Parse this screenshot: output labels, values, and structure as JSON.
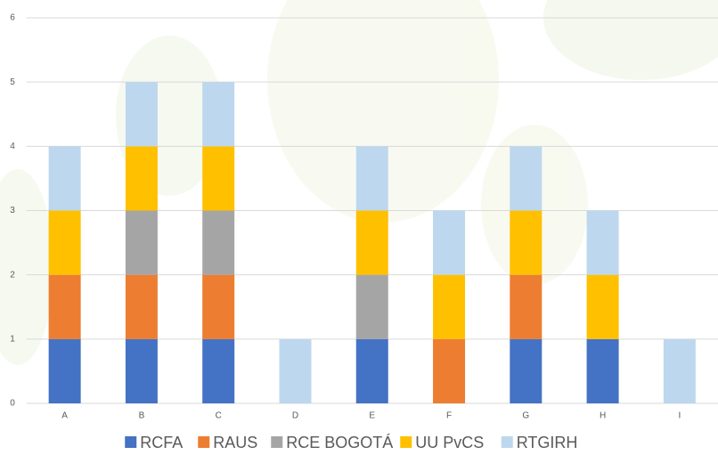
{
  "chart_data": {
    "type": "stacked_bar",
    "categories": [
      "A",
      "B",
      "C",
      "D",
      "E",
      "F",
      "G",
      "H",
      "I"
    ],
    "series": [
      {
        "name": "RCFA",
        "color": "#4472c4",
        "values": [
          1,
          1,
          1,
          0,
          1,
          0,
          1,
          1,
          0
        ]
      },
      {
        "name": "RAUS",
        "color": "#ed7d31",
        "values": [
          1,
          1,
          1,
          0,
          0,
          1,
          1,
          0,
          0
        ]
      },
      {
        "name": "RCE BOGOTÁ",
        "color": "#a5a5a5",
        "values": [
          0,
          1,
          1,
          0,
          1,
          0,
          0,
          0,
          0
        ]
      },
      {
        "name": "UU PvCS",
        "color": "#ffc000",
        "values": [
          1,
          1,
          1,
          0,
          1,
          1,
          1,
          1,
          0
        ]
      },
      {
        "name": "RTGIRH",
        "color": "#bdd7ee",
        "values": [
          1,
          1,
          1,
          1,
          1,
          1,
          1,
          1,
          1
        ]
      }
    ],
    "ylim": [
      0,
      6
    ],
    "yticks": [
      0,
      1,
      2,
      3,
      4,
      5,
      6
    ],
    "grid": true,
    "legend": "bottom"
  }
}
